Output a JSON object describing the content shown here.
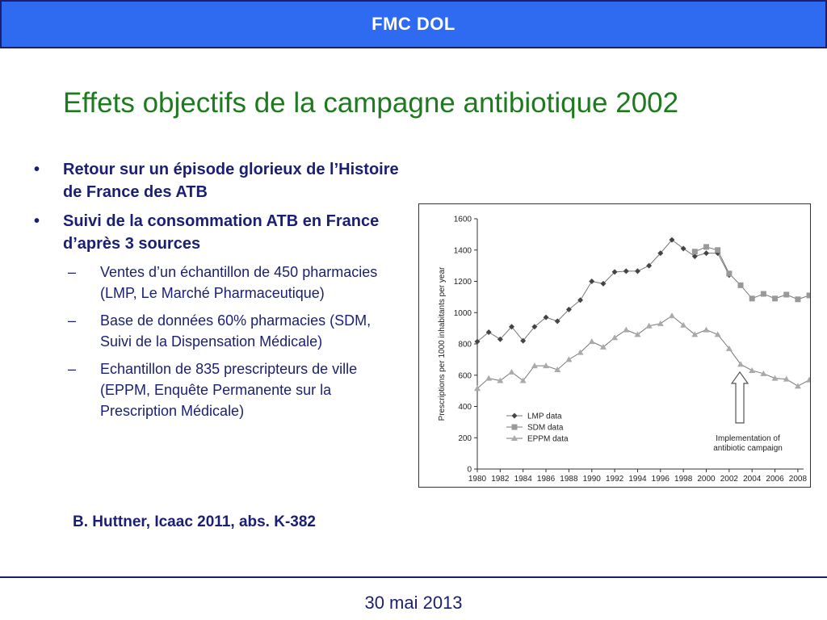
{
  "header": {
    "banner_text": "FMC DOL",
    "banner_color": "#2e6bf0"
  },
  "slide": {
    "title": "Effets objectifs de la campagne antibiotique 2002",
    "bullets": [
      "Retour sur un épisode glorieux de l’Histoire de France des ATB",
      "Suivi de la consommation ATB en France d’après 3 sources"
    ],
    "sub_bullets": [
      "Ventes d’un échantillon de 450 pharmacies (LMP, Le Marché Pharmaceutique)",
      "Base de données 60% pharmacies (SDM, Suivi de la Dispensation Médicale)",
      "Echantillon de 835 prescripteurs de ville (EPPM, Enquête Permanente sur la Prescription Médicale)"
    ],
    "bullet_glyph": "•",
    "dash_glyph": "–",
    "citation": "B. Huttner, Icaac 2011, abs. K-382"
  },
  "chart_data": {
    "type": "line",
    "ylabel": "Prescriptions per 1000 inhabitants per year",
    "xlabel": "",
    "ylim": [
      0,
      1600
    ],
    "xlim": [
      1980,
      2008.5
    ],
    "y_ticks": [
      0,
      200,
      400,
      600,
      800,
      1000,
      1200,
      1400,
      1600
    ],
    "x_ticks": [
      1980,
      1982,
      1984,
      1986,
      1988,
      1990,
      1992,
      1994,
      1996,
      1998,
      2000,
      2002,
      2004,
      2006,
      2008
    ],
    "grid": false,
    "legend_position": "lower-left",
    "series": [
      {
        "name": "LMP data",
        "marker": "diamond",
        "x": [
          1980,
          1981,
          1982,
          1983,
          1984,
          1985,
          1986,
          1987,
          1988,
          1989,
          1990,
          1991,
          1992,
          1993,
          1994,
          1995,
          1996,
          1997,
          1998,
          1999,
          2000,
          2001,
          2002
        ],
        "values": [
          815,
          875,
          830,
          910,
          820,
          910,
          970,
          945,
          1020,
          1080,
          1200,
          1185,
          1260,
          1265,
          1265,
          1300,
          1380,
          1465,
          1410,
          1360,
          1380,
          1380,
          1240
        ]
      },
      {
        "name": "SDM data",
        "marker": "square",
        "x": [
          1999,
          2000,
          2001,
          2002,
          2003,
          2004,
          2005,
          2006,
          2007,
          2008,
          2009
        ],
        "values": [
          1390,
          1420,
          1400,
          1250,
          1175,
          1090,
          1120,
          1090,
          1115,
          1085,
          1110
        ]
      },
      {
        "name": "EPPM data",
        "marker": "triangle",
        "x": [
          1980,
          1981,
          1982,
          1983,
          1984,
          1985,
          1986,
          1987,
          1988,
          1989,
          1990,
          1991,
          1992,
          1993,
          1994,
          1995,
          1996,
          1997,
          1998,
          1999,
          2000,
          2001,
          2002,
          2003,
          2004,
          2005,
          2006,
          2007,
          2008,
          2009
        ],
        "values": [
          515,
          580,
          565,
          620,
          565,
          660,
          660,
          635,
          700,
          745,
          815,
          780,
          840,
          890,
          860,
          915,
          930,
          980,
          920,
          860,
          890,
          860,
          770,
          670,
          630,
          610,
          580,
          575,
          530,
          570
        ]
      }
    ],
    "annotations": [
      "Implementation of",
      "antibiotic campaign"
    ],
    "annotation_year": 2003
  },
  "footer": {
    "date": "30 mai 2013"
  }
}
